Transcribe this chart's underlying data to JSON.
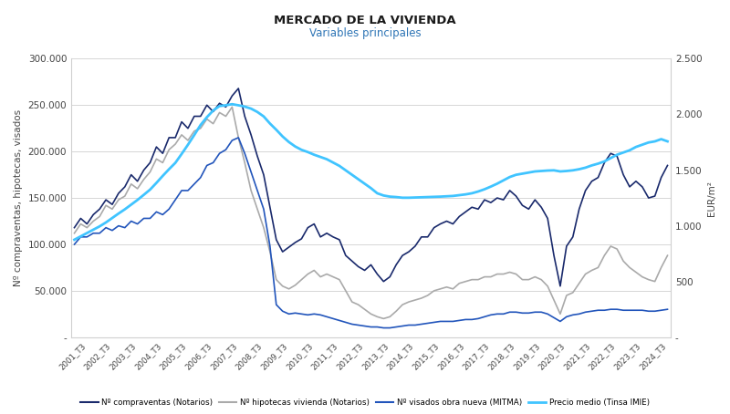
{
  "title": "MERCADO DE LA VIVIENDA",
  "subtitle": "Variables principales",
  "subtitle_color": "#2e75b6",
  "title_color": "#1a1a1a",
  "ylabel_left": "Nº compraventas, hipotecas, visados",
  "ylabel_right": "EUR/m²",
  "ylim_left": [
    0,
    300000
  ],
  "ylim_right": [
    0,
    2500
  ],
  "ytick_labels_left": [
    "-",
    "50.000",
    "100.000",
    "150.000",
    "200.000",
    "250.000",
    "300.000"
  ],
  "ytick_vals_left": [
    0,
    50000,
    100000,
    150000,
    200000,
    250000,
    300000
  ],
  "ytick_labels_right": [
    "-",
    "500",
    "1.000",
    "1.500",
    "2.000",
    "2.500"
  ],
  "ytick_vals_right": [
    0,
    500,
    1000,
    1500,
    2000,
    2500
  ],
  "grid_color": "#d0d0d0",
  "compraventas_color": "#1a2a6c",
  "hipotecas_color": "#aaaaaa",
  "visados_color": "#2255bb",
  "precio_color": "#40c4ff",
  "compraventas_label": "Nº compraventas (Notarios)",
  "hipotecas_label": "Nº hipotecas vivienda (Notarios)",
  "visados_label": "Nº visados obra nueva (MITMA)",
  "precio_label": "Precio medio (Tinsa IMIE)",
  "compraventas": [
    118000,
    128000,
    122000,
    132000,
    138000,
    148000,
    143000,
    155000,
    162000,
    175000,
    168000,
    180000,
    188000,
    205000,
    198000,
    215000,
    215000,
    232000,
    225000,
    238000,
    238000,
    250000,
    243000,
    252000,
    248000,
    260000,
    268000,
    238000,
    218000,
    195000,
    175000,
    140000,
    105000,
    92000,
    97000,
    102000,
    106000,
    118000,
    122000,
    108000,
    112000,
    108000,
    105000,
    88000,
    82000,
    76000,
    72000,
    78000,
    68000,
    60000,
    65000,
    78000,
    88000,
    92000,
    98000,
    108000,
    108000,
    118000,
    122000,
    125000,
    122000,
    130000,
    135000,
    140000,
    138000,
    148000,
    145000,
    150000,
    148000,
    158000,
    152000,
    142000,
    138000,
    148000,
    140000,
    128000,
    88000,
    55000,
    98000,
    108000,
    138000,
    158000,
    168000,
    172000,
    188000,
    198000,
    195000,
    175000,
    162000,
    168000,
    162000,
    150000,
    152000,
    172000,
    185000
  ],
  "hipotecas": [
    112000,
    122000,
    118000,
    125000,
    130000,
    142000,
    138000,
    148000,
    152000,
    165000,
    160000,
    170000,
    178000,
    192000,
    188000,
    202000,
    208000,
    218000,
    212000,
    222000,
    225000,
    235000,
    230000,
    242000,
    238000,
    248000,
    215000,
    188000,
    158000,
    138000,
    118000,
    92000,
    62000,
    55000,
    52000,
    56000,
    62000,
    68000,
    72000,
    65000,
    68000,
    65000,
    62000,
    50000,
    38000,
    35000,
    30000,
    25000,
    22000,
    20000,
    22000,
    28000,
    35000,
    38000,
    40000,
    42000,
    45000,
    50000,
    52000,
    54000,
    52000,
    58000,
    60000,
    62000,
    62000,
    65000,
    65000,
    68000,
    68000,
    70000,
    68000,
    62000,
    62000,
    65000,
    62000,
    55000,
    40000,
    25000,
    45000,
    48000,
    58000,
    68000,
    72000,
    75000,
    88000,
    98000,
    95000,
    82000,
    75000,
    70000,
    65000,
    62000,
    60000,
    75000,
    88000
  ],
  "visados": [
    100000,
    108000,
    108000,
    112000,
    112000,
    118000,
    115000,
    120000,
    118000,
    125000,
    122000,
    128000,
    128000,
    135000,
    132000,
    138000,
    148000,
    158000,
    158000,
    165000,
    172000,
    185000,
    188000,
    198000,
    202000,
    212000,
    215000,
    198000,
    178000,
    158000,
    138000,
    98000,
    35000,
    28000,
    25000,
    26000,
    25000,
    24000,
    25000,
    24000,
    22000,
    20000,
    18000,
    16000,
    14000,
    13000,
    12000,
    11000,
    11000,
    10000,
    10000,
    11000,
    12000,
    13000,
    13000,
    14000,
    15000,
    16000,
    17000,
    17000,
    17000,
    18000,
    19000,
    19000,
    20000,
    22000,
    24000,
    25000,
    25000,
    27000,
    27000,
    26000,
    26000,
    27000,
    27000,
    25000,
    21000,
    17000,
    22000,
    24000,
    25000,
    27000,
    28000,
    29000,
    29000,
    30000,
    30000,
    29000,
    29000,
    29000,
    29000,
    28000,
    28000,
    29000,
    30000
  ],
  "precio": [
    875,
    905,
    935,
    965,
    995,
    1030,
    1070,
    1110,
    1148,
    1190,
    1232,
    1278,
    1325,
    1385,
    1448,
    1508,
    1565,
    1645,
    1728,
    1815,
    1905,
    1975,
    2035,
    2075,
    2082,
    2092,
    2082,
    2070,
    2052,
    2022,
    1982,
    1918,
    1862,
    1802,
    1752,
    1712,
    1682,
    1662,
    1638,
    1618,
    1598,
    1568,
    1538,
    1498,
    1458,
    1418,
    1378,
    1338,
    1292,
    1272,
    1262,
    1258,
    1252,
    1252,
    1254,
    1256,
    1258,
    1260,
    1262,
    1265,
    1268,
    1275,
    1282,
    1292,
    1308,
    1328,
    1352,
    1378,
    1408,
    1438,
    1458,
    1468,
    1478,
    1488,
    1492,
    1496,
    1498,
    1488,
    1492,
    1498,
    1508,
    1522,
    1542,
    1558,
    1578,
    1608,
    1638,
    1658,
    1678,
    1708,
    1728,
    1748,
    1758,
    1778,
    1758
  ]
}
